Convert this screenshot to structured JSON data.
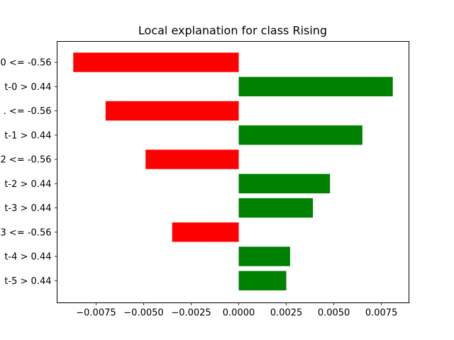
{
  "chart_data": {
    "type": "bar",
    "orientation": "horizontal",
    "title": "Local explanation for class Rising",
    "xlabel": "",
    "ylabel": "",
    "categories": [
      "0 <= -0.56",
      "t-0 > 0.44",
      ". <= -0.56",
      "t-1 > 0.44",
      "2 <= -0.56",
      "t-2 > 0.44",
      "t-3 > 0.44",
      "3 <= -0.56",
      "t-4 > 0.44",
      "t-5 > 0.44"
    ],
    "values": [
      -0.0087,
      0.0081,
      -0.007,
      0.0065,
      -0.0049,
      0.0048,
      0.0039,
      -0.0035,
      0.0027,
      0.0025
    ],
    "xlim": [
      -0.00955,
      0.00895
    ],
    "xticks": [
      -0.0075,
      -0.005,
      -0.0025,
      0.0,
      0.0025,
      0.005,
      0.0075
    ],
    "xtick_labels": [
      "−0.0075",
      "−0.0050",
      "−0.0025",
      "0.0000",
      "0.0025",
      "0.0050",
      "0.0075"
    ],
    "grid": false,
    "colors": {
      "positive": "#008000",
      "negative": "#ff0000",
      "axis": "#000000"
    }
  }
}
